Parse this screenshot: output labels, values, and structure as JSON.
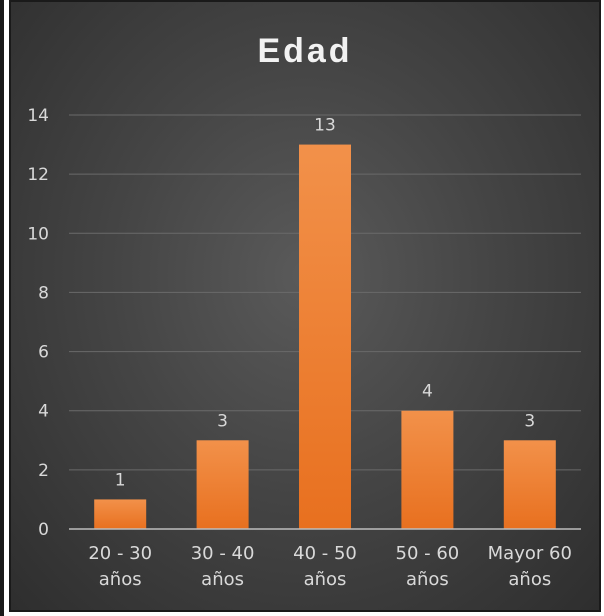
{
  "chart_data": {
    "type": "bar",
    "title": "Edad",
    "categories": [
      [
        "20 - 30",
        "años"
      ],
      [
        "30 - 40",
        "años"
      ],
      [
        "40 - 50",
        "años"
      ],
      [
        "50 - 60",
        "años"
      ],
      [
        "Mayor 60",
        "años"
      ]
    ],
    "values": [
      1,
      3,
      13,
      4,
      3
    ],
    "ylim": [
      0,
      14
    ],
    "yticks": [
      0,
      2,
      4,
      6,
      8,
      10,
      12,
      14
    ],
    "grid": true,
    "legend": "none",
    "colors": {
      "bar_top": "#f2914a",
      "bar_bottom": "#e8701f",
      "grid": "#6a6a6a",
      "axis": "#bdbdbd",
      "text": "#d9d9d9"
    }
  }
}
